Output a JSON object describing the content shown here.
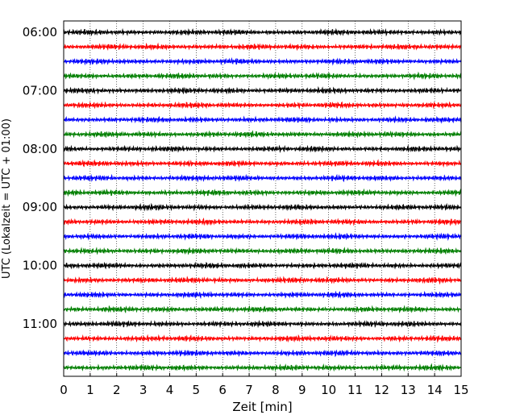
{
  "chart_data": {
    "type": "line",
    "title": "",
    "xlabel": "Zeit  [min]",
    "ylabel": "UTC (Lokalzeit = UTC + 01:00)",
    "xlim": [
      0,
      15
    ],
    "x_ticks": [
      "0",
      "1",
      "2",
      "3",
      "4",
      "5",
      "6",
      "7",
      "8",
      "9",
      "10",
      "11",
      "12",
      "13",
      "14",
      "15"
    ],
    "y_ticks": [
      "06:00",
      "07:00",
      "08:00",
      "09:00",
      "10:00",
      "11:00"
    ],
    "grid": "vertical dotted",
    "row_colors": [
      "#000000",
      "#ff0000",
      "#0000ff",
      "#007f00"
    ],
    "rows": [
      {
        "time": "06:00",
        "color": "#000000"
      },
      {
        "time": "06:15",
        "color": "#ff0000"
      },
      {
        "time": "06:30",
        "color": "#0000ff"
      },
      {
        "time": "06:45",
        "color": "#007f00"
      },
      {
        "time": "07:00",
        "color": "#000000"
      },
      {
        "time": "07:15",
        "color": "#ff0000"
      },
      {
        "time": "07:30",
        "color": "#0000ff"
      },
      {
        "time": "07:45",
        "color": "#007f00"
      },
      {
        "time": "08:00",
        "color": "#000000"
      },
      {
        "time": "08:15",
        "color": "#ff0000"
      },
      {
        "time": "08:30",
        "color": "#0000ff"
      },
      {
        "time": "08:45",
        "color": "#007f00"
      },
      {
        "time": "09:00",
        "color": "#000000"
      },
      {
        "time": "09:15",
        "color": "#ff0000"
      },
      {
        "time": "09:30",
        "color": "#0000ff"
      },
      {
        "time": "09:45",
        "color": "#007f00"
      },
      {
        "time": "10:00",
        "color": "#000000"
      },
      {
        "time": "10:15",
        "color": "#ff0000"
      },
      {
        "time": "10:30",
        "color": "#0000ff"
      },
      {
        "time": "10:45",
        "color": "#007f00"
      },
      {
        "time": "11:00",
        "color": "#000000"
      },
      {
        "time": "11:15",
        "color": "#ff0000"
      },
      {
        "time": "11:30",
        "color": "#0000ff"
      },
      {
        "time": "11:45",
        "color": "#007f00"
      }
    ]
  }
}
